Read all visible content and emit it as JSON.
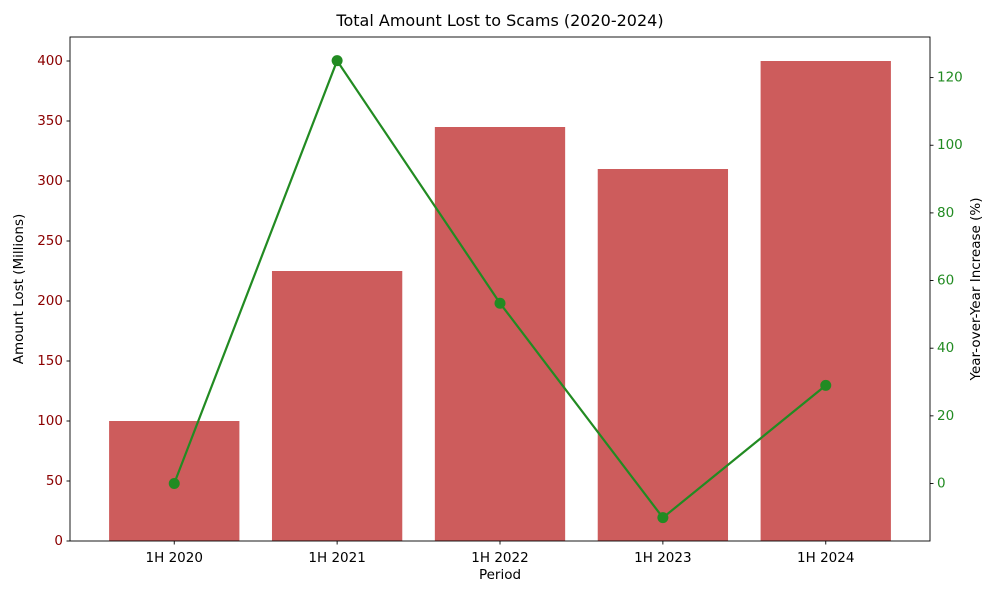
{
  "chart_data": {
    "type": "bar",
    "title": "Total Amount Lost to Scams (2020-2024)",
    "xlabel": "Period",
    "categories": [
      "1H 2020",
      "1H 2021",
      "1H 2022",
      "1H 2023",
      "1H 2024"
    ],
    "series": [
      {
        "name": "Amount Lost",
        "type": "bar",
        "axis": "left",
        "color": "#CD5C5C",
        "values": [
          100,
          225,
          345,
          310,
          400
        ]
      },
      {
        "name": "Year-over-Year Increase",
        "type": "line",
        "axis": "right",
        "color": "#228B22",
        "marker": "circle",
        "values": [
          0,
          125,
          53.3,
          -10.1,
          29.0
        ]
      }
    ],
    "left_axis": {
      "label": "Amount Lost (Millions)",
      "color": "#8B0000",
      "ticks": [
        0,
        50,
        100,
        150,
        200,
        250,
        300,
        350,
        400
      ],
      "lim": [
        0,
        420
      ]
    },
    "right_axis": {
      "label": "Year-over-Year Increase (%)",
      "color": "#228B22",
      "ticks": [
        0,
        20,
        40,
        60,
        80,
        100,
        120
      ],
      "lim": [
        -17,
        132
      ]
    },
    "x_axis": {
      "tick_color": "#000000"
    },
    "grid": false,
    "legend": "none",
    "background": "#FFFFFF",
    "spine_color": "#000000"
  }
}
